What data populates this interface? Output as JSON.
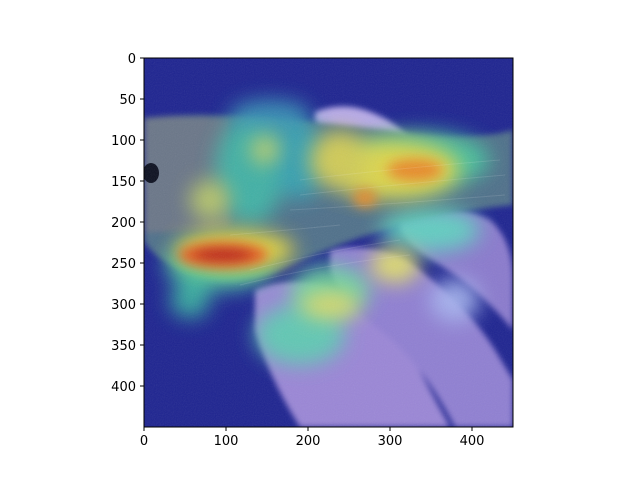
{
  "figure": {
    "image_subject": "bird held in a hand with a heatmap overlay",
    "colormap": "jet",
    "x_axis": {
      "ticks": [
        "0",
        "100",
        "200",
        "300",
        "400"
      ],
      "range": [
        0,
        450
      ]
    },
    "y_axis": {
      "ticks": [
        "0",
        "50",
        "100",
        "150",
        "200",
        "250",
        "300",
        "350",
        "400"
      ],
      "range": [
        0,
        450
      ]
    },
    "colors": {
      "cold": "#1a1f8c",
      "mid": "#35c8b0",
      "warm": "#f2e23a",
      "hot": "#c8281e"
    }
  }
}
